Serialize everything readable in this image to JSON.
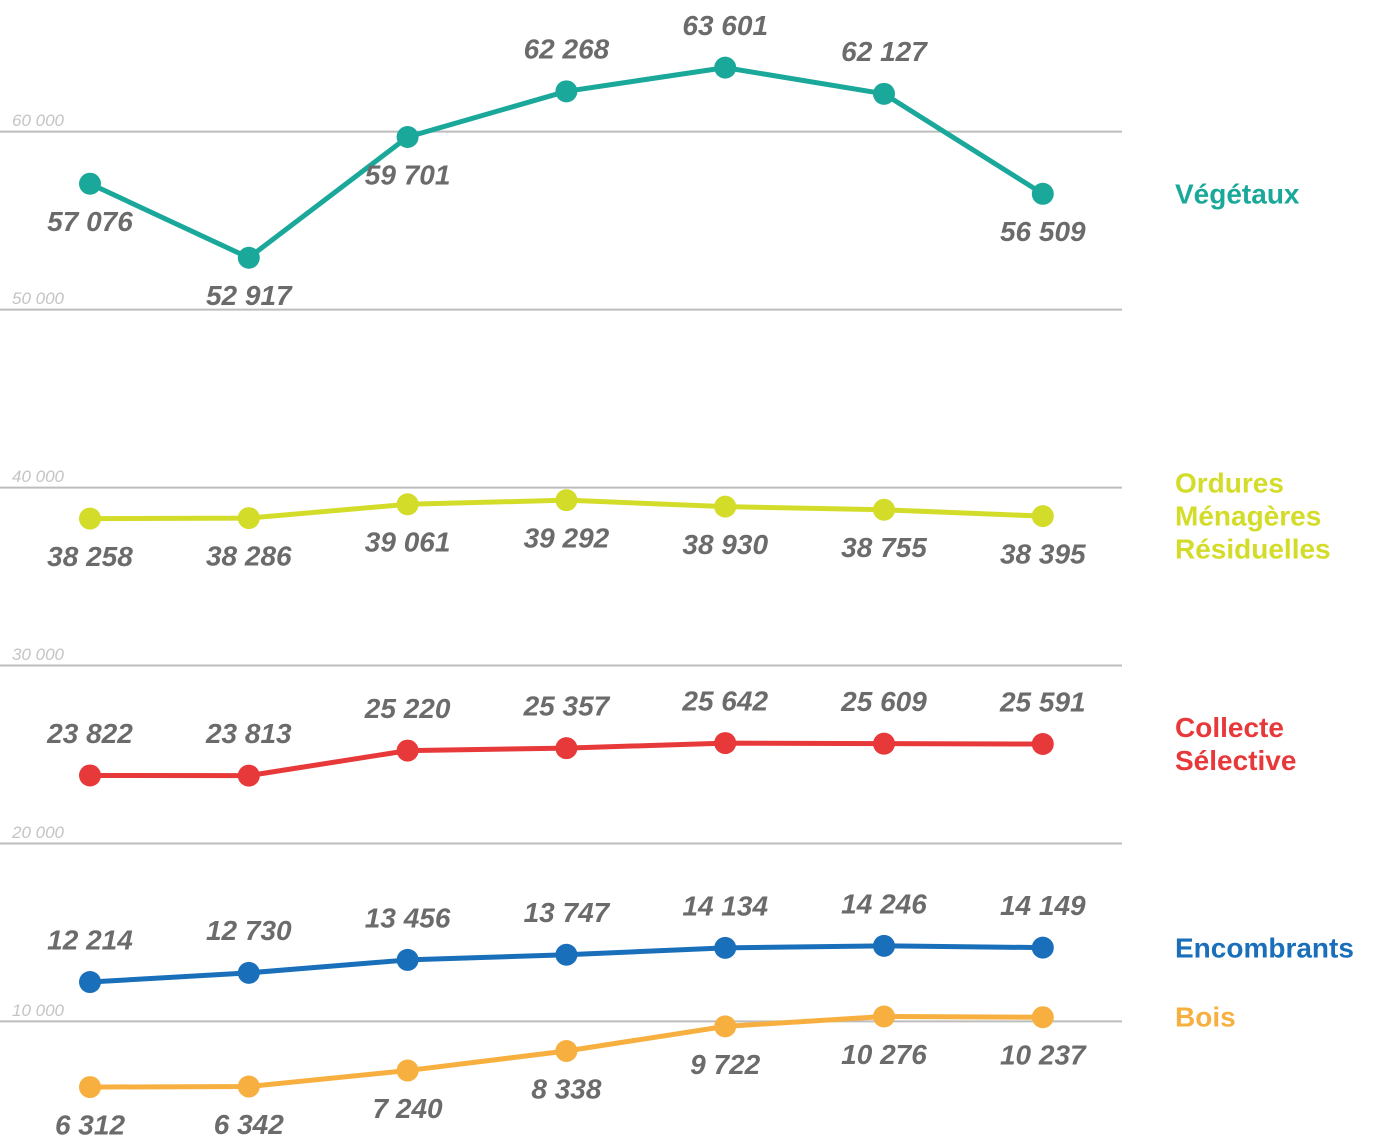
{
  "chart_data": {
    "type": "line",
    "categories": [
      null,
      null,
      null,
      null,
      null,
      null,
      null
    ],
    "ylim": [
      3000,
      67400
    ],
    "yticks": [
      {
        "value": 10000,
        "label": "10 000"
      },
      {
        "value": 20000,
        "label": "20 000"
      },
      {
        "value": 30000,
        "label": "30 000"
      },
      {
        "value": 40000,
        "label": "40 000"
      },
      {
        "value": 50000,
        "label": "50 000"
      },
      {
        "value": 60000,
        "label": "60 000"
      }
    ],
    "grid": true,
    "series": [
      {
        "name": "Végétaux",
        "color": "#1aa89a",
        "values": [
          57076,
          52917,
          59701,
          62268,
          63601,
          62127,
          56509
        ],
        "value_labels": [
          "57 076",
          "52 917",
          "59 701",
          "62 268",
          "63 601",
          "62 127",
          "56 509"
        ]
      },
      {
        "name": "Ordures Ménagères Résiduelles",
        "color": "#d4dc2a",
        "values": [
          38258,
          38286,
          39061,
          39292,
          38930,
          38755,
          38395
        ],
        "value_labels": [
          "38 258",
          "38 286",
          "39 061",
          "39 292",
          "38 930",
          "38 755",
          "38 395"
        ]
      },
      {
        "name": "Collecte Sélective",
        "color": "#e8393a",
        "values": [
          23822,
          23813,
          25220,
          25357,
          25642,
          25609,
          25591
        ],
        "value_labels": [
          "23 822",
          "23 813",
          "25 220",
          "25 357",
          "25 642",
          "25 609",
          "25 591"
        ]
      },
      {
        "name": "Encombrants",
        "color": "#1a6fba",
        "values": [
          12214,
          12730,
          13456,
          13747,
          14134,
          14246,
          14149
        ],
        "value_labels": [
          "12 214",
          "12 730",
          "13 456",
          "13 747",
          "14 134",
          "14 246",
          "14 149"
        ]
      },
      {
        "name": "Bois",
        "color": "#f7b040",
        "values": [
          6312,
          6342,
          7240,
          8338,
          9722,
          10276,
          10237
        ],
        "value_labels": [
          "6 312",
          "6 342",
          "7 240",
          "8 338",
          "9 722",
          "10 276",
          "10 237"
        ]
      }
    ]
  }
}
